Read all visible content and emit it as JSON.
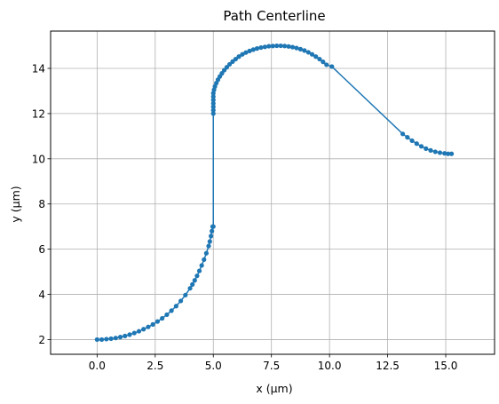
{
  "chart_data": {
    "type": "line",
    "title": "Path Centerline",
    "xlabel": "x (µm)",
    "ylabel": "y (µm)",
    "xlim": [
      -2.0,
      17.1
    ],
    "ylim": [
      1.35,
      15.65
    ],
    "xticks": [
      0.0,
      2.5,
      5.0,
      7.5,
      10.0,
      12.5,
      15.0
    ],
    "xtick_labels": [
      "0.0",
      "2.5",
      "5.0",
      "7.5",
      "10.0",
      "12.5",
      "15.0"
    ],
    "yticks": [
      2,
      4,
      6,
      8,
      10,
      12,
      14
    ],
    "ytick_labels": [
      "2",
      "4",
      "6",
      "8",
      "10",
      "12",
      "14"
    ],
    "grid": true,
    "legend": null,
    "series": [
      {
        "color": "#1f77b4",
        "marker": "circle",
        "x": [
          0.0,
          0.2,
          0.4,
          0.6,
          0.8,
          1.0,
          1.2,
          1.4,
          1.6,
          1.8,
          2.0,
          2.2,
          2.4,
          2.6,
          2.8,
          3.0,
          3.2,
          3.4,
          3.6,
          3.8,
          4.0,
          4.1,
          4.2,
          4.3,
          4.4,
          4.5,
          4.6,
          4.7,
          4.8,
          4.85,
          4.9,
          4.94,
          4.97,
          5.0,
          5.0,
          5.0,
          5.0,
          5.0,
          5.0,
          5.0,
          5.0,
          5.03,
          5.07,
          5.13,
          5.2,
          5.28,
          5.37,
          5.47,
          5.58,
          5.7,
          5.83,
          5.96,
          6.1,
          6.25,
          6.4,
          6.56,
          6.72,
          6.88,
          7.05,
          7.22,
          7.39,
          7.56,
          7.73,
          7.9,
          8.07,
          8.24,
          8.41,
          8.58,
          8.75,
          8.92,
          9.09,
          9.25,
          9.41,
          9.57,
          9.72,
          9.87,
          10.1,
          13.15,
          13.35,
          13.55,
          13.75,
          13.95,
          14.15,
          14.35,
          14.55,
          14.75,
          14.95,
          15.1,
          15.25
        ],
        "y": [
          2.0,
          2.0,
          2.02,
          2.04,
          2.07,
          2.11,
          2.16,
          2.22,
          2.29,
          2.37,
          2.46,
          2.56,
          2.67,
          2.8,
          2.94,
          3.1,
          3.28,
          3.48,
          3.71,
          3.97,
          4.27,
          4.44,
          4.62,
          4.82,
          5.04,
          5.28,
          5.54,
          5.82,
          6.14,
          6.34,
          6.58,
          6.8,
          7.0,
          7.0,
          12.0,
          12.15,
          12.3,
          12.45,
          12.6,
          12.75,
          12.9,
          13.05,
          13.2,
          13.35,
          13.5,
          13.64,
          13.78,
          13.92,
          14.05,
          14.18,
          14.3,
          14.41,
          14.52,
          14.62,
          14.7,
          14.77,
          14.83,
          14.88,
          14.92,
          14.95,
          14.98,
          14.99,
          15.0,
          15.0,
          14.99,
          14.97,
          14.94,
          14.9,
          14.85,
          14.79,
          14.71,
          14.62,
          14.52,
          14.41,
          14.29,
          14.16,
          14.08,
          11.1,
          10.95,
          10.8,
          10.67,
          10.55,
          10.45,
          10.37,
          10.31,
          10.27,
          10.24,
          10.22,
          10.22
        ]
      }
    ]
  }
}
